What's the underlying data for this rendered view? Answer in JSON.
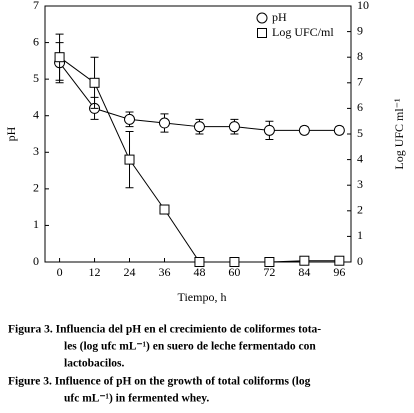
{
  "chart_data": {
    "type": "line",
    "x": [
      0,
      12,
      24,
      36,
      48,
      60,
      72,
      84,
      96
    ],
    "xlim": [
      -5,
      100
    ],
    "xticks": [
      0,
      12,
      24,
      36,
      48,
      60,
      72,
      84,
      96
    ],
    "xlabel": "Tiempo, h",
    "ylabel": "pH",
    "y2label": "Log UFC ml⁻¹",
    "ylim": [
      0,
      7
    ],
    "yticks": [
      0,
      1,
      2,
      3,
      4,
      5,
      6,
      7
    ],
    "y2lim": [
      0,
      10
    ],
    "y2ticks": [
      0,
      1,
      2,
      3,
      4,
      5,
      6,
      7,
      8,
      9,
      10
    ],
    "legend": "upper right",
    "grid": false,
    "series": [
      {
        "name": "pH",
        "color": "#000000",
        "marker": "circle",
        "values": [
          5.45,
          4.2,
          3.9,
          3.8,
          3.7,
          3.7,
          3.6,
          3.6,
          3.6
        ],
        "errors": [
          0.55,
          0.3,
          0.2,
          0.25,
          0.2,
          0.2,
          0.25,
          0.1,
          0.1
        ]
      },
      {
        "name": "Log UFC/ml",
        "color": "#000000",
        "marker": "square",
        "axis": "y2",
        "values": [
          8.0,
          7.0,
          4.0,
          2.05,
          0,
          0,
          0,
          0.05,
          0.05
        ],
        "errors": [
          0.9,
          1.0,
          1.1,
          0,
          0,
          0,
          0,
          0,
          0
        ]
      }
    ]
  },
  "caption": {
    "lines": [
      "Figura 3. Influencia del pH en el crecimiento de coliformes tota-",
      "les (log ufc mL⁻¹) en suero de leche fermentado con",
      "lactobacilos.",
      "Figure 3. Influence of pH on the growth of total coliforms (log",
      "ufc mL⁻¹) in fermented whey."
    ]
  }
}
